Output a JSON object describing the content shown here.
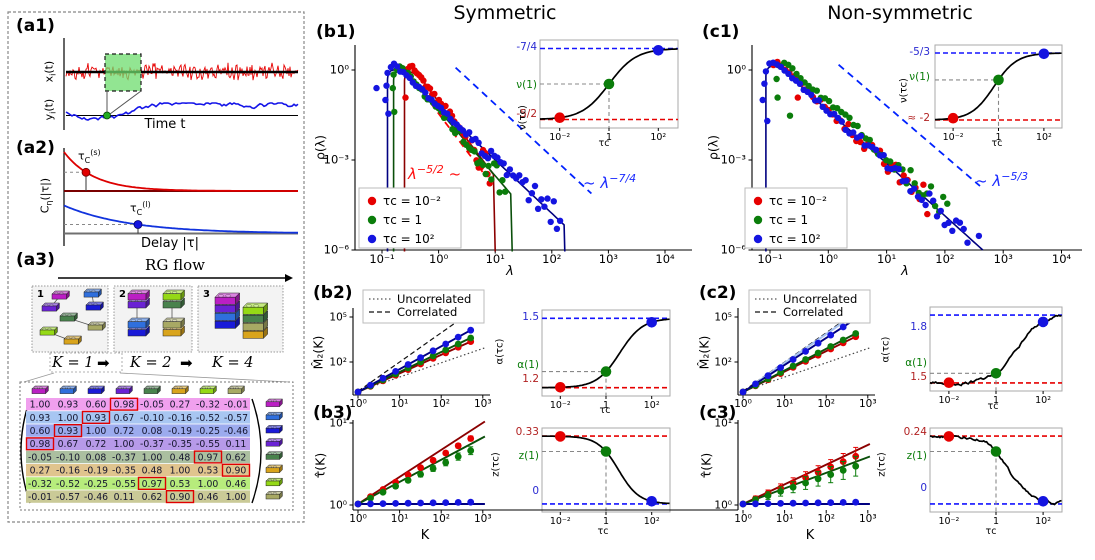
{
  "panel_labels": {
    "a1": "(a1)",
    "a2": "(a2)",
    "a3": "(a3)",
    "b1": "(b1)",
    "b2": "(b2)",
    "b3": "(b3)",
    "c1": "(c1)",
    "c2": "(c2)",
    "c3": "(c3)"
  },
  "a1": {
    "xlabel": "Time t",
    "ylabel_x": {
      "b": "x",
      "s": "i",
      "r": "(t)"
    },
    "ylabel_y": {
      "b": "y",
      "s": "i",
      "r": "(t)"
    }
  },
  "a2": {
    "xlabel": "Delay |τ|",
    "ylabel": {
      "b": "C",
      "s": "η",
      "r": "(|τ|)"
    },
    "tau_short": {
      "b": "τ",
      "s": "C",
      "p": "(s)"
    },
    "tau_long": {
      "b": "τ",
      "s": "C",
      "p": "(l)"
    }
  },
  "a3": {
    "flow_label": "RG flow",
    "arrow": "➡",
    "k_steps": [
      "K = 1",
      "K = 2",
      "K = 4"
    ],
    "stage_numbers": [
      "1",
      "2",
      "3"
    ]
  },
  "matrix": {
    "block_colors": [
      "#bb1fc4",
      "#2f6fdd",
      "#1a1ad8",
      "#6a22d4",
      "#49824d",
      "#d9a41c",
      "#95d916",
      "#a8a964"
    ],
    "row_bg": [
      "#f0a0ee",
      "#a8c6f2",
      "#9cabee",
      "#b79ae9",
      "#abbfa0",
      "#e0c48e",
      "#b7ec7c",
      "#caca97"
    ],
    "text_color": "#15152e",
    "highlight_color": "#e00000",
    "values": [
      [
        "1.00",
        "0.93",
        "0.60",
        "0.98",
        "-0.05",
        "0.27",
        "-0.32",
        "-0.01"
      ],
      [
        "0.93",
        "1.00",
        "0.93",
        "0.67",
        "-0.10",
        "-0.16",
        "-0.52",
        "-0.57"
      ],
      [
        "0.60",
        "0.93",
        "1.00",
        "0.72",
        "0.08",
        "-0.19",
        "-0.25",
        "-0.46"
      ],
      [
        "0.98",
        "0.67",
        "0.72",
        "1.00",
        "-0.37",
        "-0.35",
        "-0.55",
        "0.11"
      ],
      [
        "-0.05",
        "-0.10",
        "0.08",
        "-0.37",
        "1.00",
        "0.48",
        "0.97",
        "0.62"
      ],
      [
        "0.27",
        "-0.16",
        "-0.19",
        "-0.35",
        "0.48",
        "1.00",
        "0.53",
        "0.90"
      ],
      [
        "-0.32",
        "-0.52",
        "-0.25",
        "-0.55",
        "0.97",
        "0.53",
        "1.00",
        "0.46"
      ],
      [
        "-0.01",
        "-0.57",
        "-0.46",
        "0.11",
        "0.62",
        "0.90",
        "0.46",
        "1.00"
      ]
    ],
    "highlight_cells": [
      [
        0,
        3
      ],
      [
        1,
        2
      ],
      [
        2,
        1
      ],
      [
        3,
        0
      ],
      [
        4,
        6
      ],
      [
        5,
        7
      ],
      [
        6,
        4
      ],
      [
        7,
        5
      ]
    ]
  },
  "chart_data": [
    {
      "id": "b1",
      "type": "scatter",
      "title": "Symmetric",
      "xlabel": "λ",
      "ylabel": "ρ(λ)",
      "xscale": "log",
      "yscale": "log",
      "xtick_exps": [
        -1,
        0,
        1,
        2,
        3,
        4
      ],
      "xtick_labels": [
        "10⁻¹",
        "10⁰",
        "10¹",
        "10²",
        "10³",
        "10⁴"
      ],
      "ytick_exps": [
        0,
        -3,
        -6
      ],
      "ytick_labels": [
        "10⁰",
        "10⁻³",
        "10⁻⁶"
      ],
      "series": [
        {
          "name": "τᴄ = 10⁻²",
          "color": "#e60000",
          "line_color": "#8b0000",
          "exponent": -2.5,
          "lambda_min": 0.25,
          "lambda_max": 10,
          "peak": 1.4,
          "scatter_max": 8,
          "n": 38,
          "jitter": 0.5,
          "seed": 11,
          "drop": true,
          "outliers": [
            [
              0.26,
              0.12
            ]
          ]
        },
        {
          "name": "τᴄ = 1",
          "color": "#0b7d0b",
          "line_color": "#0a4f0a",
          "exponent": -2.2,
          "lambda_min": 0.16,
          "lambda_max": 20,
          "peak": 1.45,
          "scatter_max": 15,
          "n": 40,
          "jitter": 0.5,
          "seed": 22,
          "drop": true,
          "outliers": [
            [
              0.16,
              0.7
            ],
            [
              0.155,
              0.25
            ],
            [
              0.165,
              0.04
            ]
          ]
        },
        {
          "name": "τᴄ = 10²",
          "color": "#1414e0",
          "line_color": "#000080",
          "exponent": -1.78,
          "lambda_min": 0.125,
          "lambda_max": 170,
          "peak": 1.5,
          "scatter_max": 140,
          "n": 55,
          "jitter": 0.45,
          "seed": 33,
          "drop": true,
          "outliers": [
            [
              0.125,
              0.8
            ],
            [
              0.12,
              0.3
            ],
            [
              0.115,
              0.1
            ],
            [
              0.13,
              0.035
            ],
            [
              0.08,
              0.25
            ]
          ]
        }
      ],
      "guides": [
        {
          "color": "#ff0000",
          "slope": -2.5,
          "x_start": 0.4,
          "y_start": 0.35,
          "x_end": 6,
          "label_parts": {
            "pre": "",
            "base": "λ",
            "exp": "−5/2",
            "post": " ~"
          }
        },
        {
          "color": "#0022ff",
          "slope": -1.75,
          "x_start": 2,
          "y_start": 1.2,
          "x_end": 500,
          "label_parts": {
            "pre": "~ ",
            "base": "λ",
            "exp": "−7/4",
            "post": ""
          }
        }
      ],
      "inset": {
        "ylabel": "ν(τᴄ)",
        "xlabel": "τᴄ",
        "xtick_exps": [
          -2,
          0,
          2
        ],
        "xtick_labels": [
          "10⁻²",
          "1",
          "10²"
        ],
        "top_label": "-7/4",
        "top_value": -1.75,
        "mid_label": "ν(1)",
        "bottom_label": "-5/2",
        "bottom_value": -2.5,
        "center": 0,
        "width": 0.55,
        "noisy": false,
        "decreasing": false,
        "seed": 3
      }
    },
    {
      "id": "c1",
      "type": "scatter",
      "title": "Non-symmetric",
      "xlabel": "λ",
      "ylabel": "ρ(λ)",
      "xscale": "log",
      "yscale": "log",
      "xtick_exps": [
        -1,
        0,
        1,
        2,
        3,
        4
      ],
      "xtick_labels": [
        "10⁻¹",
        "10⁰",
        "10¹",
        "10²",
        "10³",
        "10⁴"
      ],
      "ytick_exps": [
        0,
        -3,
        -6
      ],
      "ytick_labels": [
        "10⁰",
        "10⁻³",
        "10⁻⁶"
      ],
      "series": [
        {
          "name": "τᴄ = 10⁻²",
          "color": "#e60000",
          "line_color": "#8b0000",
          "exponent": -1.8,
          "lambda_min": 0.1,
          "peak": 1.9,
          "scatter_max": 50,
          "n": 40,
          "jitter": 0.42,
          "seed": 44,
          "show_line": false,
          "outliers": [
            [
              0.28,
              0.45
            ],
            [
              0.3,
              0.12
            ]
          ]
        },
        {
          "name": "τᴄ = 1",
          "color": "#0b7d0b",
          "line_color": "#0a4f0a",
          "exponent": -1.78,
          "lambda_min": 0.13,
          "peak": 1.9,
          "scatter_max": 110,
          "n": 42,
          "jitter": 0.42,
          "seed": 55,
          "show_line": false,
          "outliers": [
            [
              0.13,
              0.5
            ],
            [
              0.135,
              0.12
            ],
            [
              0.22,
              0.03
            ]
          ]
        },
        {
          "name": "τᴄ = 10²",
          "color": "#1414e0",
          "line_color": "#000080",
          "exponent": -1.75,
          "lambda_min": 0.085,
          "lambda_max": 1000,
          "peak": 2.0,
          "scatter_max": 700,
          "n": 60,
          "jitter": 0.45,
          "seed": 66,
          "drop": false,
          "outliers": [
            [
              0.085,
              0.9
            ],
            [
              0.08,
              0.35
            ],
            [
              0.075,
              0.1
            ],
            [
              0.09,
              0.02
            ]
          ]
        }
      ],
      "guides": [
        {
          "color": "#0022ff",
          "slope": -1.667,
          "x_start": 1.5,
          "y_start": 1.5,
          "x_end": 400,
          "label_parts": {
            "pre": "~ ",
            "base": "λ",
            "exp": "−5/3",
            "post": ""
          }
        }
      ],
      "inset": {
        "ylabel": "ν(τᴄ)",
        "xlabel": "τᴄ",
        "xtick_exps": [
          -2,
          0,
          2
        ],
        "xtick_labels": [
          "10⁻²",
          "1",
          "10²"
        ],
        "top_label": "-5/3",
        "top_value": -1.667,
        "mid_label": "ν(1)",
        "bottom_label": "≈ -2",
        "bottom_value": -2.0,
        "center": -0.2,
        "width": 0.5,
        "noisy": false,
        "decreasing": false,
        "seed": 3
      }
    },
    {
      "id": "b2",
      "type": "line",
      "ylabel": "M̂₂(K)",
      "xlabel": "",
      "K": [
        1,
        2,
        4,
        8,
        16,
        32,
        64,
        128,
        256,
        512
      ],
      "xtick_exps": [
        0,
        1,
        2,
        3
      ],
      "xtick_labels": [
        "10⁰",
        "10¹",
        "10²",
        "10³"
      ],
      "ytick_exps": [
        5,
        2
      ],
      "ytick_labels": [
        "10⁵",
        "10²"
      ],
      "legend": [
        {
          "label": "Uncorrelated",
          "style": "dotted"
        },
        {
          "label": "Correlated",
          "style": "dashed"
        }
      ],
      "ref_uncorrelated_slope": 0.95,
      "ref_correlated_slope": 1.95,
      "series": [
        {
          "name": "τᴄ = 10⁻²",
          "color": "#e60000",
          "line_color": "#8b0000",
          "slope": 1.24
        },
        {
          "name": "τᴄ = 1",
          "color": "#0b7d0b",
          "line_color": "#0a4f0a",
          "slope": 1.33
        },
        {
          "name": "τᴄ = 10²",
          "color": "#1414e0",
          "line_color": "#000080",
          "slope": 1.52
        }
      ],
      "inset": {
        "ylabel": "α(τᴄ)",
        "xlabel": "τᴄ",
        "xtick_exps": [
          -2,
          0,
          2
        ],
        "xtick_labels": [
          "10⁻²",
          "1",
          "10²"
        ],
        "top_label": "1.5",
        "top_value": 1.5,
        "mid_label": "α(1)",
        "bottom_label": "1.2",
        "bottom_value": 1.2,
        "center": 0.6,
        "width": 0.5,
        "noisy": false,
        "decreasing": false,
        "seed": 4
      }
    },
    {
      "id": "c2",
      "type": "line",
      "ylabel": "M̂₂(K)",
      "xlabel": "",
      "K": [
        1,
        2,
        4,
        8,
        16,
        32,
        64,
        128,
        256,
        512
      ],
      "xtick_exps": [
        0,
        1,
        2,
        3
      ],
      "xtick_labels": [
        "10⁰",
        "10¹",
        "10²",
        "10³"
      ],
      "ytick_exps": [
        5,
        2
      ],
      "ytick_labels": [
        "10⁵",
        "10²"
      ],
      "legend": [
        {
          "label": "Uncorrelated",
          "style": "dotted"
        },
        {
          "label": "Correlated",
          "style": "dashed"
        }
      ],
      "ref_uncorrelated_slope": 0.95,
      "ref_correlated_slope": 1.95,
      "shadow": {
        "color": "#a9c3f1",
        "slope": 1.93
      },
      "series": [
        {
          "name": "τᴄ = 10⁻²",
          "color": "#e60000",
          "line_color": "#8b0000",
          "slope": 1.36
        },
        {
          "name": "τᴄ = 1",
          "color": "#0b7d0b",
          "line_color": "#0a4f0a",
          "slope": 1.44
        },
        {
          "name": "τᴄ = 10²",
          "color": "#1414e0",
          "line_color": "#000080",
          "slope": 1.8
        }
      ],
      "inset": {
        "ylabel": "α(τᴄ)",
        "xlabel": "τᴄ",
        "xtick_exps": [
          -2,
          0,
          2
        ],
        "xtick_labels": [
          "10⁻²",
          "1",
          "10²"
        ],
        "top_label": "1.8",
        "top_value": 1.8,
        "mid_label": "α(1)",
        "bottom_label": "1.5",
        "bottom_value": 1.5,
        "center": 0.9,
        "width": 0.5,
        "noisy": true,
        "decreasing": false,
        "seed": 5
      }
    },
    {
      "id": "b3",
      "type": "line",
      "ylabel": "τ̂(K)",
      "xlabel": "K",
      "K": [
        1,
        2,
        4,
        8,
        16,
        32,
        64,
        128,
        256,
        512
      ],
      "xtick_exps": [
        0,
        1,
        2,
        3
      ],
      "xtick_labels": [
        "10⁰",
        "10¹",
        "10²",
        "10³"
      ],
      "ytick_exps": [
        1,
        0
      ],
      "ytick_labels": [
        "10¹",
        "10⁰"
      ],
      "series": [
        {
          "name": "τᴄ = 10⁻²",
          "color": "#e60000",
          "line_color": "#8b0000",
          "line_slope": 0.33,
          "dot_slope": 0.295,
          "err": 0.025
        },
        {
          "name": "τᴄ = 1",
          "color": "#0b7d0b",
          "line_color": "#0a4f0a",
          "line_slope": 0.27,
          "dot_slope": 0.24,
          "err": 0.04
        },
        {
          "name": "τᴄ = 10²",
          "color": "#1414e0",
          "line_color": "#000080",
          "line_slope": 0,
          "dot_slope": 0.008,
          "err": 0
        }
      ],
      "inset": {
        "ylabel": "z(τᴄ)",
        "xlabel": "τᴄ",
        "xtick_exps": [
          -2,
          0,
          2
        ],
        "xtick_labels": [
          "10⁻²",
          "1",
          "10²"
        ],
        "top_label": "0.33",
        "top_value": 0.33,
        "mid_label": "z(1)",
        "bottom_label": "0",
        "bottom_value": 0,
        "center": 0.55,
        "width": 0.45,
        "noisy": false,
        "decreasing": true,
        "seed": 6
      }
    },
    {
      "id": "c3",
      "type": "line",
      "ylabel": "τ̂(K)",
      "xlabel": "K",
      "K": [
        1,
        2,
        4,
        8,
        16,
        32,
        64,
        128,
        256,
        512
      ],
      "xtick_exps": [
        0,
        1,
        2,
        3
      ],
      "xtick_labels": [
        "10⁰",
        "10¹",
        "10²",
        "10³"
      ],
      "ytick_exps": [
        1,
        0
      ],
      "ytick_labels": [
        "10¹",
        "10⁰"
      ],
      "series": [
        {
          "name": "τᴄ = 10⁻²",
          "color": "#e60000",
          "line_color": "#8b0000",
          "line_slope": 0.24,
          "dot_slope": 0.215,
          "err": 0.09
        },
        {
          "name": "τᴄ = 1",
          "color": "#0b7d0b",
          "line_color": "#0a4f0a",
          "line_slope": 0.19,
          "dot_slope": 0.17,
          "err": 0.1
        },
        {
          "name": "τᴄ = 10²",
          "color": "#1414e0",
          "line_color": "#000080",
          "line_slope": 0,
          "dot_slope": 0.008,
          "err": 0
        }
      ],
      "inset": {
        "ylabel": "z(τᴄ)",
        "xlabel": "τᴄ",
        "xtick_exps": [
          -2,
          0,
          2
        ],
        "xtick_labels": [
          "10⁻²",
          "1",
          "10²"
        ],
        "top_label": "0.24",
        "top_value": 0.24,
        "mid_label": "z(1)",
        "bottom_label": "0",
        "bottom_value": 0,
        "center": 0.55,
        "width": 0.45,
        "noisy": true,
        "decreasing": true,
        "seed": 9
      }
    }
  ]
}
